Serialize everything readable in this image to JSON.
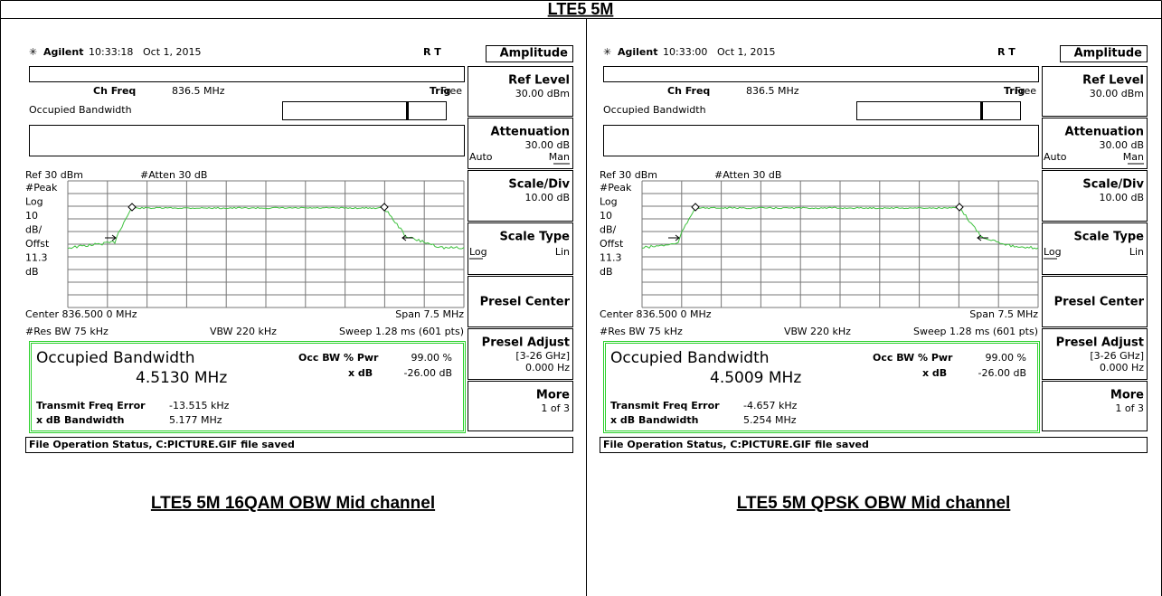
{
  "title": "LTE5 5M",
  "panels": [
    {
      "caption": "LTE5 5M 16QAM OBW Mid channel",
      "screen": {
        "brand": "Agilent",
        "time": "10:33:18",
        "date": "Oct 1, 2015",
        "flags": "R  T",
        "menu_title": "Amplitude",
        "ch_freq_label": "Ch Freq",
        "ch_freq": "836.5 MHz",
        "trig_label": "Trig",
        "trig": "Free",
        "mode": "Occupied Bandwidth",
        "ref": "Ref 30 dBm",
        "atten": "#Atten 30 dB",
        "side_labels": [
          "#Peak",
          "Log",
          "10",
          "dB/",
          "Offst",
          "11.3",
          "dB"
        ],
        "center": "Center 836.500 0 MHz",
        "span": "Span 7.5 MHz",
        "res_bw": "#Res BW 75 kHz",
        "vbw": "VBW 220 kHz",
        "sweep": "Sweep 1.28 ms (601 pts)",
        "result_title": "Occupied Bandwidth",
        "obw": "4.5130 MHz",
        "occ_label": "Occ BW % Pwr",
        "occ": "99.00 %",
        "xdb_label": "x dB",
        "xdb": "-26.00 dB",
        "tfe_label": "Transmit Freq Error",
        "tfe": "-13.515 kHz",
        "xdbbw_label": "x dB Bandwidth",
        "xdbbw": "5.177 MHz",
        "file_status": "File Operation Status, C:PICTURE.GIF file saved",
        "softkeys": [
          {
            "label": "Ref Level",
            "value": "30.00 dBm"
          },
          {
            "label": "Attenuation",
            "value": "30.00 dB",
            "options": [
              "Auto",
              "Man"
            ]
          },
          {
            "label": "Scale/Div",
            "value": "10.00 dB"
          },
          {
            "label": "Scale Type",
            "options": [
              "Log",
              "Lin"
            ]
          },
          {
            "label": "Presel Center"
          },
          {
            "label": "Presel Adjust",
            "value": "[3-26 GHz]",
            "value2": "0.000  Hz"
          },
          {
            "label": "More",
            "value": "1 of 3"
          }
        ]
      }
    },
    {
      "caption": "LTE5 5M QPSK OBW Mid channel",
      "screen": {
        "brand": "Agilent",
        "time": "10:33:00",
        "date": "Oct 1, 2015",
        "flags": "R  T",
        "menu_title": "Amplitude",
        "ch_freq_label": "Ch Freq",
        "ch_freq": "836.5 MHz",
        "trig_label": "Trig",
        "trig": "Free",
        "mode": "Occupied Bandwidth",
        "ref": "Ref 30 dBm",
        "atten": "#Atten 30 dB",
        "side_labels": [
          "#Peak",
          "Log",
          "10",
          "dB/",
          "Offst",
          "11.3",
          "dB"
        ],
        "center": "Center 836.500 0 MHz",
        "span": "Span 7.5 MHz",
        "res_bw": "#Res BW 75 kHz",
        "vbw": "VBW 220 kHz",
        "sweep": "Sweep 1.28 ms (601 pts)",
        "result_title": "Occupied Bandwidth",
        "obw": "4.5009 MHz",
        "occ_label": "Occ BW % Pwr",
        "occ": "99.00 %",
        "xdb_label": "x dB",
        "xdb": "-26.00 dB",
        "tfe_label": "Transmit Freq Error",
        "tfe": "-4.657 kHz",
        "xdbbw_label": "x dB Bandwidth",
        "xdbbw": "5.254 MHz",
        "file_status": "File Operation Status, C:PICTURE.GIF file saved",
        "softkeys": [
          {
            "label": "Ref Level",
            "value": "30.00 dBm"
          },
          {
            "label": "Attenuation",
            "value": "30.00 dB",
            "options": [
              "Auto",
              "Man"
            ]
          },
          {
            "label": "Scale/Div",
            "value": "10.00 dB"
          },
          {
            "label": "Scale Type",
            "options": [
              "Log",
              "Lin"
            ]
          },
          {
            "label": "Presel Center"
          },
          {
            "label": "Presel Adjust",
            "value": "[3-26 GHz]",
            "value2": "0.000  Hz"
          },
          {
            "label": "More",
            "value": "1 of 3"
          }
        ]
      }
    }
  ]
}
